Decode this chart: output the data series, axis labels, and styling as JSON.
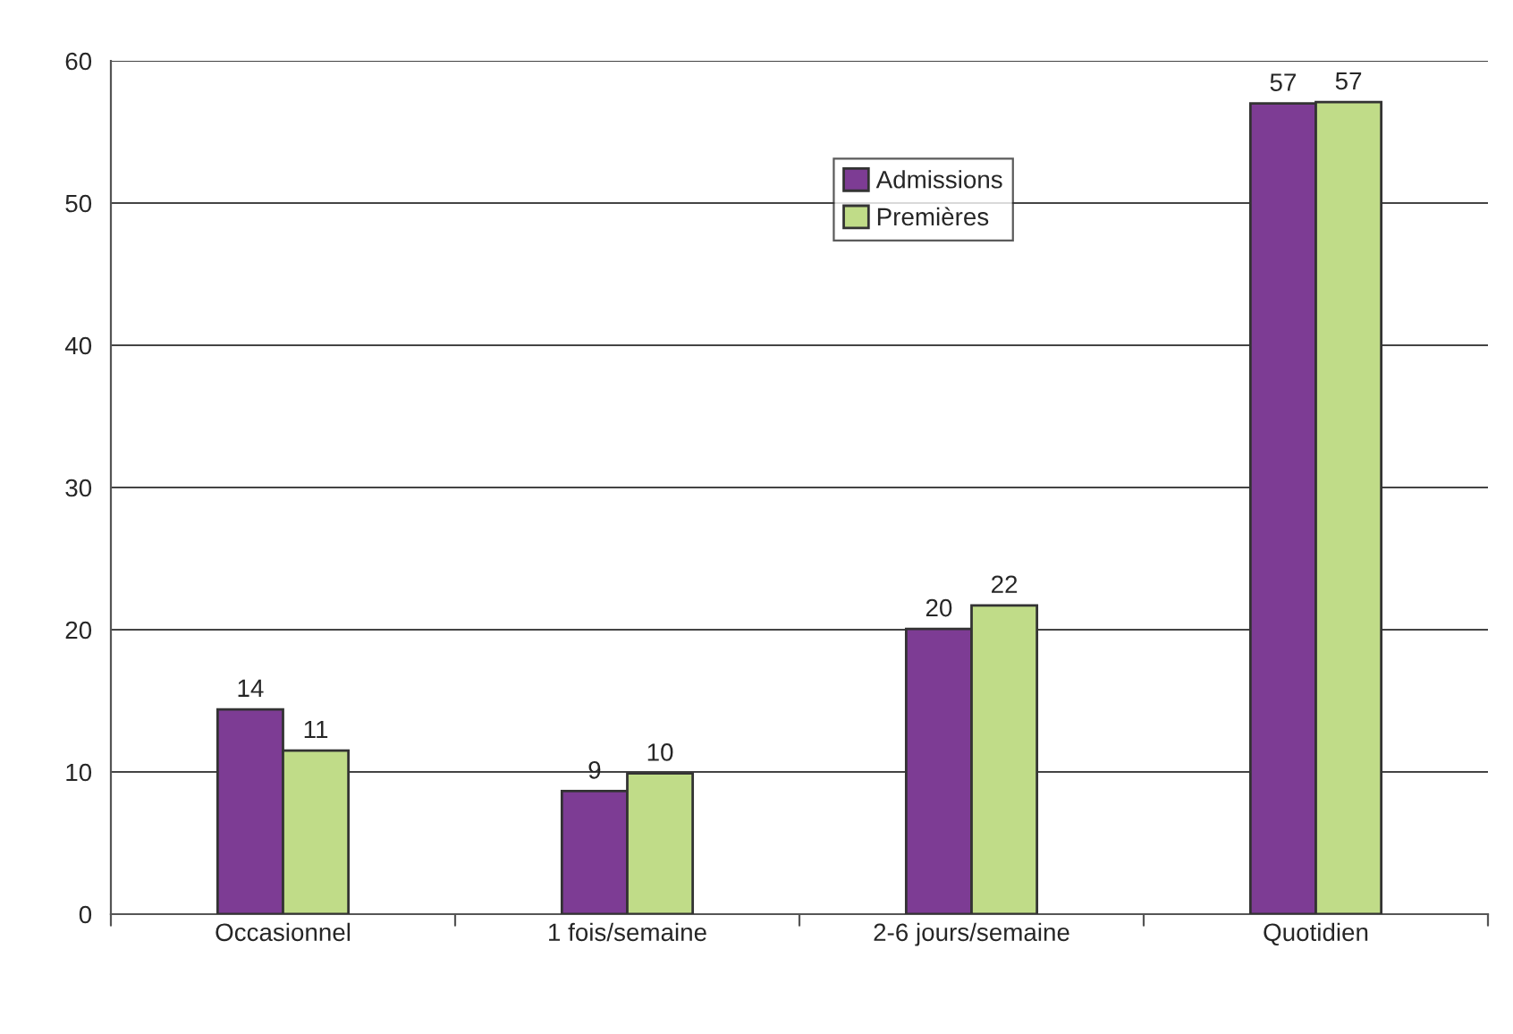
{
  "chart_data": {
    "type": "bar",
    "categories": [
      "Occasionnel",
      "1 fois/semaine",
      "2-6 jours/semaine",
      "Quotidien"
    ],
    "series": [
      {
        "name": "Admissions",
        "color": "#7d3c94",
        "values": [
          14.4,
          8.65,
          20.05,
          57.0
        ],
        "value_labels": [
          "14",
          "9",
          "20",
          "57"
        ]
      },
      {
        "name": "Premières",
        "color": "#c0dc88",
        "values": [
          11.5,
          9.9,
          21.7,
          57.1
        ],
        "value_labels": [
          "11",
          "10",
          "22",
          "57"
        ]
      }
    ],
    "ylim": [
      0,
      60
    ],
    "yticks": [
      0,
      10,
      20,
      30,
      40,
      50,
      60
    ],
    "grid": "y",
    "legend": "top"
  }
}
